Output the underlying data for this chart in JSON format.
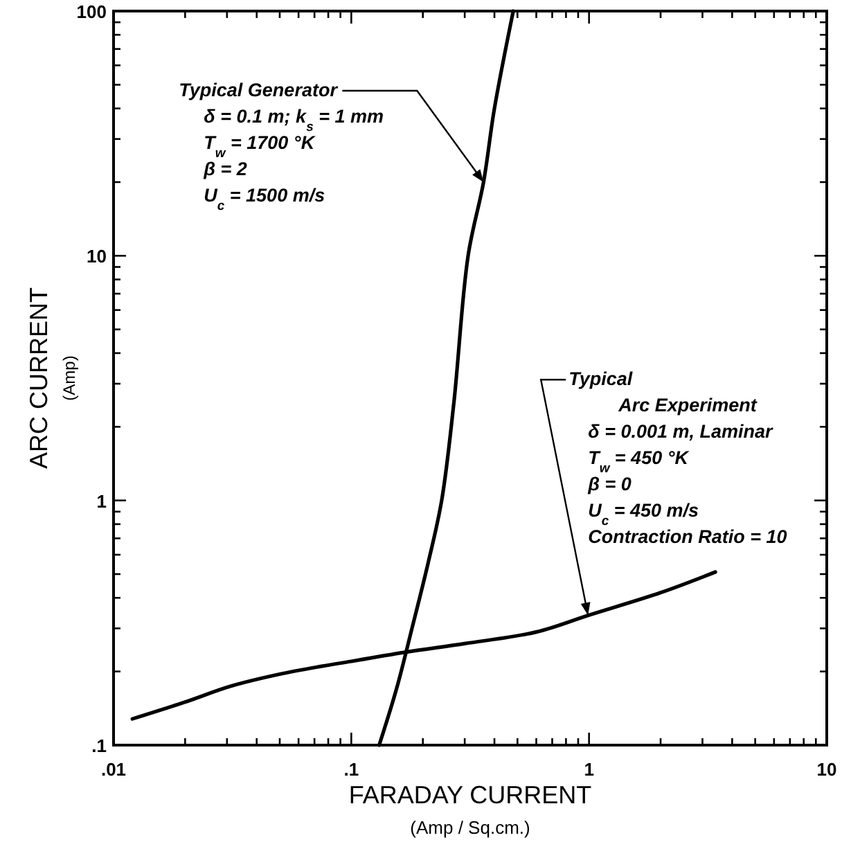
{
  "chart_data": {
    "type": "line",
    "xlabel": "FARADAY CURRENT\n(Amp / Sq.cm.)",
    "ylabel": "ARC CURRENT\n(Amp)",
    "log": "xy",
    "line_style": "solid",
    "xlim": [
      0.01,
      10
    ],
    "ylim": [
      0.1,
      100
    ],
    "xticks": [
      {
        "value": 0.01,
        "label": ".01"
      },
      {
        "value": 0.02,
        "label": null
      },
      {
        "value": 0.03,
        "label": null
      },
      {
        "value": 0.04,
        "label": null
      },
      {
        "value": 0.05,
        "label": null
      },
      {
        "value": 0.06,
        "label": null
      },
      {
        "value": 0.07,
        "label": null
      },
      {
        "value": 0.08,
        "label": null
      },
      {
        "value": 0.09,
        "label": null
      },
      {
        "value": 0.1,
        "label": ".1"
      },
      {
        "value": 0.2,
        "label": null
      },
      {
        "value": 0.3,
        "label": null
      },
      {
        "value": 0.4,
        "label": null
      },
      {
        "value": 0.5,
        "label": null
      },
      {
        "value": 0.6,
        "label": null
      },
      {
        "value": 0.7,
        "label": null
      },
      {
        "value": 0.8,
        "label": null
      },
      {
        "value": 0.9,
        "label": null
      },
      1,
      {
        "value": 2,
        "label": null
      },
      {
        "value": 3,
        "label": null
      },
      {
        "value": 4,
        "label": null
      },
      {
        "value": 5,
        "label": null
      },
      {
        "value": 6,
        "label": null
      },
      {
        "value": 7,
        "label": null
      },
      {
        "value": 8,
        "label": null
      },
      {
        "value": 9,
        "label": null
      },
      10
    ],
    "yticks": [
      {
        "value": 0.1,
        "label": ".1"
      },
      {
        "value": 0.2,
        "label": null
      },
      {
        "value": 0.3,
        "label": null
      },
      {
        "value": 0.4,
        "label": null
      },
      {
        "value": 0.5,
        "label": null
      },
      {
        "value": 0.6,
        "label": null
      },
      {
        "value": 0.7,
        "label": null
      },
      {
        "value": 0.8,
        "label": null
      },
      {
        "value": 0.9,
        "label": null
      },
      1,
      {
        "value": 2,
        "label": null
      },
      {
        "value": 3,
        "label": null
      },
      {
        "value": 4,
        "label": null
      },
      {
        "value": 5,
        "label": null
      },
      {
        "value": 6,
        "label": null
      },
      {
        "value": 7,
        "label": null
      },
      {
        "value": 8,
        "label": null
      },
      {
        "value": 9,
        "label": null
      },
      10,
      {
        "value": 20,
        "label": null
      },
      {
        "value": 30,
        "label": null
      },
      {
        "value": 40,
        "label": null
      },
      {
        "value": 50,
        "label": null
      },
      {
        "value": 60,
        "label": null
      },
      {
        "value": 70,
        "label": null
      },
      {
        "value": 80,
        "label": null
      },
      {
        "value": 90,
        "label": null
      },
      100
    ],
    "series": [
      {
        "color": "#000000",
        "x": [
          0.131,
          0.155,
          0.18,
          0.21,
          0.24,
          0.27,
          0.31,
          0.36,
          0.4,
          0.48
        ],
        "values": [
          0.1,
          0.17,
          0.3,
          0.55,
          1,
          2.5,
          10,
          20,
          40,
          100
        ]
      },
      {
        "color": "#000000",
        "x": [
          0.012,
          0.02,
          0.031,
          0.05,
          0.075,
          0.1,
          0.17,
          0.3,
          0.6,
          1,
          2,
          3.4
        ],
        "values": [
          0.128,
          0.15,
          0.174,
          0.195,
          0.21,
          0.22,
          0.24,
          0.26,
          0.29,
          0.34,
          0.42,
          0.51
        ]
      }
    ],
    "annotations": [
      {
        "text": "Typical Generator",
        "x": 0.36,
        "y": 20
      },
      "δ = 0.1 m; k$_{s}$ = 1 mm",
      "T$_{w}$ = 1700 °K",
      "β = 2",
      "U$_{c}$ = 1500 m/s",
      {
        "text": "Typical",
        "x": 0.99,
        "y": 0.34
      },
      "Arc Experiment",
      "δ = 0.001 m, Laminar",
      "T$_{w}$ = 450 °K",
      "β = 0",
      "U$_{c}$ = 450 m/s",
      "Contraction Ratio = 10"
    ]
  }
}
